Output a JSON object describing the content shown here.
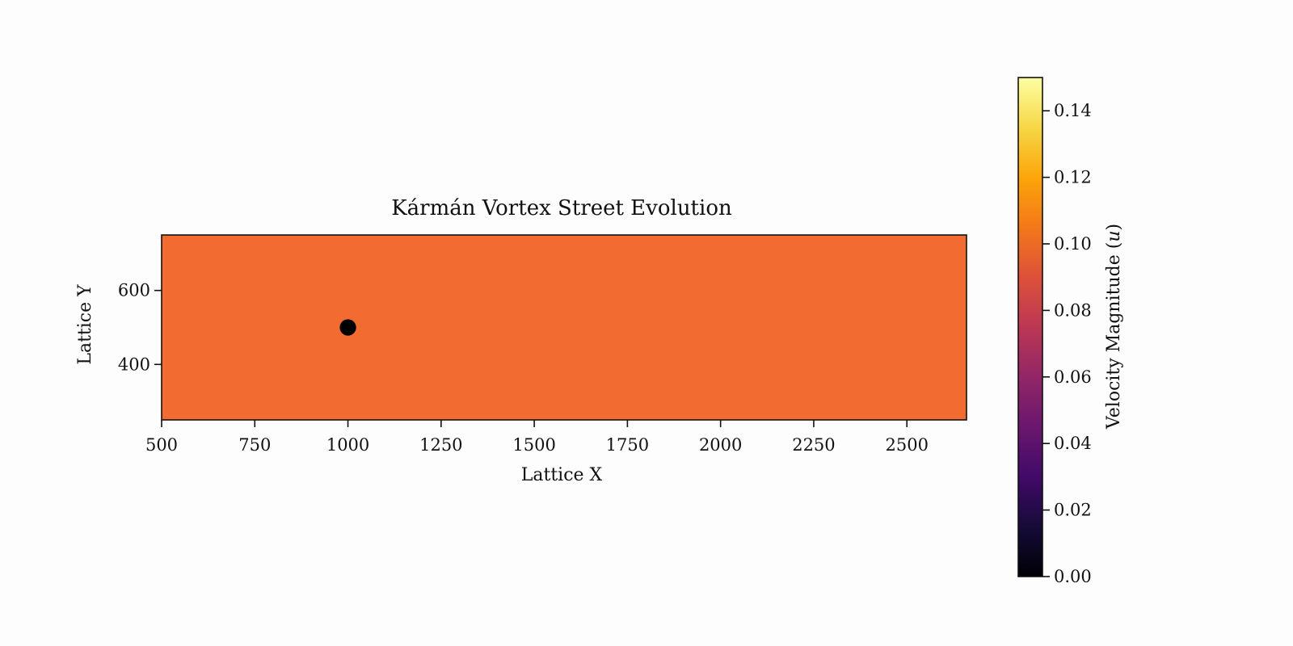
{
  "chart_data": {
    "type": "heatmap",
    "title": "Kármán Vortex Street Evolution",
    "xlabel": "Lattice X",
    "ylabel": "Lattice Y",
    "xlim": [
      500,
      2660
    ],
    "ylim": [
      250,
      750
    ],
    "x_ticks": [
      500,
      750,
      1000,
      1250,
      1500,
      1750,
      2000,
      2250,
      2500
    ],
    "y_ticks": [
      400,
      600
    ],
    "field": {
      "description_value": "uniform",
      "velocity_magnitude": 0.1,
      "fill_color": "#f26b30"
    },
    "obstacle": {
      "center_x": 1000,
      "center_y": 500,
      "radius": 22,
      "color": "#000000"
    },
    "colorbar": {
      "label": "Velocity Magnitude (u)",
      "label_text": "Velocity Magnitude (",
      "label_var": "u",
      "label_close": ")",
      "colormap": "inferno",
      "range": [
        0,
        0.15
      ],
      "ticks": [
        0.0,
        0.02,
        0.04,
        0.06,
        0.08,
        0.1,
        0.12,
        0.14
      ],
      "tick_labels": [
        "0.00",
        "0.02",
        "0.04",
        "0.06",
        "0.08",
        "0.10",
        "0.12",
        "0.14"
      ]
    },
    "grid": false
  }
}
